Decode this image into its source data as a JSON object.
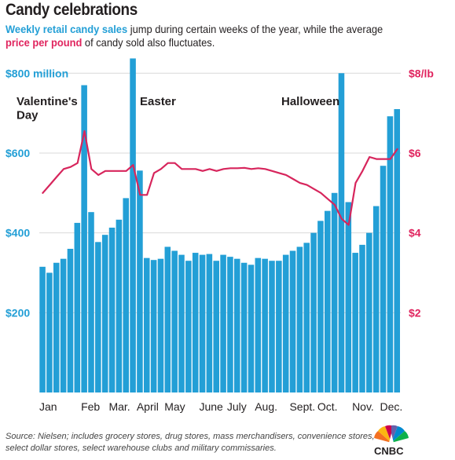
{
  "header": {
    "title": "Candy celebrations",
    "subtitle_blue": "Weekly retail candy sales",
    "subtitle_mid": " jump during certain weeks of the year, while the average",
    "subtitle_red": "price per pound",
    "subtitle_end": " of candy sold also fluctuates."
  },
  "source_note": "Source: Nielsen; includes grocery stores, drug stores, mass merchandisers, convenience stores, select dollar stores, select warehouse clubs and military commissaries.",
  "logo_text": "CNBC",
  "colors": {
    "bar": "#239fd6",
    "line": "#d7255c",
    "left_axis": "#239fd6",
    "right_axis": "#e0245e",
    "text": "#231f20"
  },
  "chart_data": {
    "type": "bar",
    "title": "",
    "xlabel": "",
    "ylabel": "",
    "ylim": [
      0,
      830
    ],
    "y2lim": [
      0,
      8.3
    ],
    "left_ticks": [
      {
        "value": 200,
        "label": "$200"
      },
      {
        "value": 400,
        "label": "$400"
      },
      {
        "value": 600,
        "label": "$600"
      },
      {
        "value": 800,
        "label": "$800 million"
      }
    ],
    "right_ticks": [
      {
        "value": 2,
        "label": "$2"
      },
      {
        "value": 4,
        "label": "$4"
      },
      {
        "value": 6,
        "label": "$6"
      },
      {
        "value": 8,
        "label": "$8/lb"
      }
    ],
    "x_month_labels": [
      {
        "label": "Jan",
        "week": 1
      },
      {
        "label": "Feb",
        "week": 7
      },
      {
        "label": "Mar.",
        "week": 11
      },
      {
        "label": "April",
        "week": 15
      },
      {
        "label": "May",
        "week": 19
      },
      {
        "label": "June",
        "week": 24
      },
      {
        "label": "July",
        "week": 28
      },
      {
        "label": "Aug.",
        "week": 32
      },
      {
        "label": "Sept.",
        "week": 37
      },
      {
        "label": "Oct.",
        "week": 41
      },
      {
        "label": "Nov.",
        "week": 46
      },
      {
        "label": "Dec.",
        "week": 50
      }
    ],
    "annotations": [
      {
        "text": "Valentine's",
        "week": 1,
        "y": 730
      },
      {
        "text": "Day",
        "week": 1,
        "y": 695
      },
      {
        "text": "Easter",
        "week": 15,
        "y": 730
      },
      {
        "text": "Halloween",
        "week": 37,
        "y": 730
      }
    ],
    "series": [
      {
        "name": "Weekly retail candy sales ($ million)",
        "type": "bar",
        "values": [
          315,
          300,
          325,
          335,
          360,
          425,
          770,
          452,
          377,
          395,
          413,
          433,
          487,
          837,
          556,
          337,
          332,
          335,
          365,
          355,
          345,
          330,
          350,
          345,
          347,
          330,
          345,
          340,
          335,
          325,
          320,
          337,
          335,
          330,
          330,
          345,
          355,
          365,
          375,
          400,
          430,
          455,
          500,
          800,
          477,
          350,
          370,
          400,
          467,
          568,
          692,
          710
        ]
      },
      {
        "name": "Average price per pound ($)",
        "type": "line",
        "values": [
          5.0,
          5.2,
          5.4,
          5.6,
          5.65,
          5.75,
          6.55,
          5.6,
          5.45,
          5.55,
          5.55,
          5.55,
          5.55,
          5.7,
          4.95,
          4.95,
          5.5,
          5.6,
          5.75,
          5.75,
          5.6,
          5.6,
          5.6,
          5.55,
          5.6,
          5.55,
          5.6,
          5.62,
          5.62,
          5.63,
          5.6,
          5.62,
          5.6,
          5.55,
          5.5,
          5.45,
          5.35,
          5.25,
          5.2,
          5.1,
          5.0,
          4.85,
          4.7,
          4.35,
          4.2,
          5.25,
          5.55,
          5.9,
          5.85,
          5.85,
          5.85,
          6.1
        ]
      }
    ]
  }
}
